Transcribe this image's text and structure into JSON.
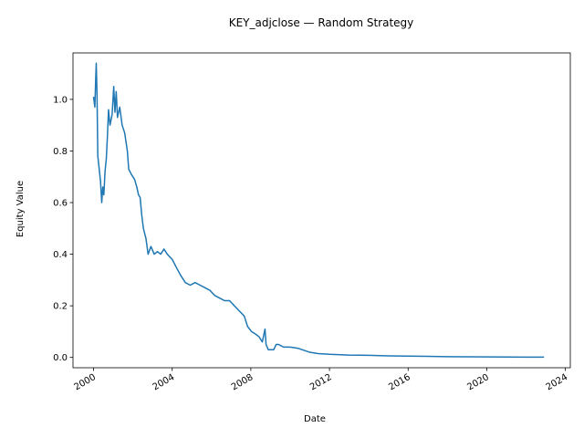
{
  "chart_data": {
    "type": "line",
    "title": "KEY_adjclose — Random Strategy",
    "xlabel": "Date",
    "ylabel": "Equity Value",
    "x_ticks": [
      "2000",
      "2004",
      "2008",
      "2012",
      "2016",
      "2020",
      "2024"
    ],
    "y_ticks": [
      "0.0",
      "0.2",
      "0.4",
      "0.6",
      "0.8",
      "1.0"
    ],
    "xlim": [
      "1998-12-15",
      "2024-04-01"
    ],
    "ylim": [
      -0.04,
      1.18
    ],
    "grid": false,
    "line_color": "#1f77b4",
    "series": [
      {
        "name": "",
        "points": [
          [
            "2000-01-01",
            1.01
          ],
          [
            "2000-01-25",
            0.97
          ],
          [
            "2000-02-10",
            1.08
          ],
          [
            "2000-02-20",
            1.14
          ],
          [
            "2000-03-05",
            1.02
          ],
          [
            "2000-03-20",
            0.78
          ],
          [
            "2000-04-15",
            0.73
          ],
          [
            "2000-05-10",
            0.68
          ],
          [
            "2000-06-01",
            0.6
          ],
          [
            "2000-06-20",
            0.66
          ],
          [
            "2000-07-10",
            0.63
          ],
          [
            "2000-08-01",
            0.72
          ],
          [
            "2000-08-25",
            0.77
          ],
          [
            "2000-09-15",
            0.86
          ],
          [
            "2000-10-05",
            0.96
          ],
          [
            "2000-11-01",
            0.9
          ],
          [
            "2000-12-10",
            0.94
          ],
          [
            "2001-01-10",
            1.05
          ],
          [
            "2001-02-01",
            0.95
          ],
          [
            "2001-02-25",
            1.03
          ],
          [
            "2001-03-20",
            0.93
          ],
          [
            "2001-05-01",
            0.97
          ],
          [
            "2001-06-15",
            0.9
          ],
          [
            "2001-08-01",
            0.87
          ],
          [
            "2001-09-20",
            0.8
          ],
          [
            "2001-10-15",
            0.73
          ],
          [
            "2001-12-01",
            0.71
          ],
          [
            "2002-02-01",
            0.69
          ],
          [
            "2002-03-15",
            0.66
          ],
          [
            "2002-04-15",
            0.63
          ],
          [
            "2002-05-15",
            0.62
          ],
          [
            "2002-06-15",
            0.55
          ],
          [
            "2002-07-15",
            0.5
          ],
          [
            "2002-09-01",
            0.46
          ],
          [
            "2002-10-10",
            0.4
          ],
          [
            "2002-12-01",
            0.43
          ],
          [
            "2003-02-01",
            0.4
          ],
          [
            "2003-04-01",
            0.41
          ],
          [
            "2003-06-01",
            0.4
          ],
          [
            "2003-08-01",
            0.42
          ],
          [
            "2003-10-01",
            0.4
          ],
          [
            "2004-01-01",
            0.38
          ],
          [
            "2004-03-15",
            0.35
          ],
          [
            "2004-06-01",
            0.32
          ],
          [
            "2004-09-01",
            0.29
          ],
          [
            "2004-12-01",
            0.28
          ],
          [
            "2005-03-01",
            0.29
          ],
          [
            "2005-06-01",
            0.28
          ],
          [
            "2005-09-01",
            0.27
          ],
          [
            "2005-12-01",
            0.26
          ],
          [
            "2006-03-01",
            0.24
          ],
          [
            "2006-06-01",
            0.23
          ],
          [
            "2006-09-01",
            0.22
          ],
          [
            "2006-12-01",
            0.22
          ],
          [
            "2007-03-01",
            0.2
          ],
          [
            "2007-06-01",
            0.18
          ],
          [
            "2007-09-01",
            0.16
          ],
          [
            "2007-11-01",
            0.12
          ],
          [
            "2008-01-15",
            0.1
          ],
          [
            "2008-04-01",
            0.09
          ],
          [
            "2008-06-01",
            0.08
          ],
          [
            "2008-08-01",
            0.06
          ],
          [
            "2008-09-20",
            0.11
          ],
          [
            "2008-10-10",
            0.05
          ],
          [
            "2008-11-20",
            0.03
          ],
          [
            "2009-01-15",
            0.03
          ],
          [
            "2009-03-01",
            0.03
          ],
          [
            "2009-04-15",
            0.05
          ],
          [
            "2009-06-01",
            0.05
          ],
          [
            "2009-09-01",
            0.04
          ],
          [
            "2010-01-01",
            0.04
          ],
          [
            "2010-06-01",
            0.035
          ],
          [
            "2011-01-01",
            0.02
          ],
          [
            "2011-06-01",
            0.015
          ],
          [
            "2012-01-01",
            0.012
          ],
          [
            "2013-01-01",
            0.009
          ],
          [
            "2014-01-01",
            0.008
          ],
          [
            "2015-01-01",
            0.006
          ],
          [
            "2016-01-01",
            0.005
          ],
          [
            "2017-01-01",
            0.004
          ],
          [
            "2018-01-01",
            0.003
          ],
          [
            "2019-01-01",
            0.0025
          ],
          [
            "2020-01-01",
            0.002
          ],
          [
            "2021-01-01",
            0.0015
          ],
          [
            "2022-01-01",
            0.001
          ],
          [
            "2022-12-01",
            0.001
          ]
        ]
      }
    ]
  }
}
